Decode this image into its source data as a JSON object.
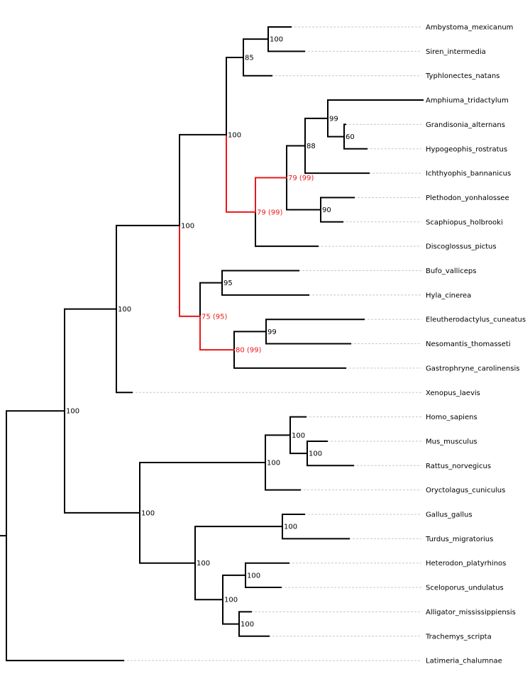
{
  "tree": {
    "highlight_color": "#e8191c",
    "branch_color": "#000000",
    "leader_color": "#c8c8c8",
    "taxa": [
      "Ambystoma_mexicanum",
      "Siren_intermedia",
      "Typhlonectes_natans",
      "Amphiuma_tridactylum",
      "Grandisonia_alternans",
      "Hypogeophis_rostratus",
      "Ichthyophis_bannanicus",
      "Plethodon_yonhalossee",
      "Scaphiopus_holbrooki",
      "Discoglossus_pictus",
      "Bufo_valliceps",
      "Hyla_cinerea",
      "Eleutherodactylus_cuneatus",
      "Nesomantis_thomasseti",
      "Gastrophryne_carolinensis",
      "Xenopus_laevis",
      "Homo_sapiens",
      "Mus_musculus",
      "Rattus_norvegicus",
      "Oryctolagus_cuniculus",
      "Gallus_gallus",
      "Turdus_migratorius",
      "Heterodon_platyrhinos",
      "Sceloporus_undulatus",
      "Alligator_mississippiensis",
      "Trachemys_scripta",
      "Latimeria_chalumnae"
    ],
    "support_values": {
      "n_amb_sir": "100",
      "n_caud": "85",
      "n_hyp_gra": "60",
      "n_amph_cae": "99",
      "n_ichthy": "88",
      "n_pleth_scaph": "90",
      "n_inner_red": "79 (99)",
      "n_outer_red": "79 (99)",
      "n_top": "100",
      "n_bufo_hyla": "95",
      "n_eleu_neso": "99",
      "n_microhylid": "80 (99)",
      "n_anura_red": "75 (95)",
      "n_mid": "100",
      "n_amphibia": "100",
      "n_mus_rat": "100",
      "n_homo_murid": "100",
      "n_mammal": "100",
      "n_bird": "100",
      "n_squamata": "100",
      "n_archo": "100",
      "n_reptile": "100",
      "n_sauria": "100",
      "n_amniota": "100",
      "n_tetrapoda": "100"
    }
  }
}
